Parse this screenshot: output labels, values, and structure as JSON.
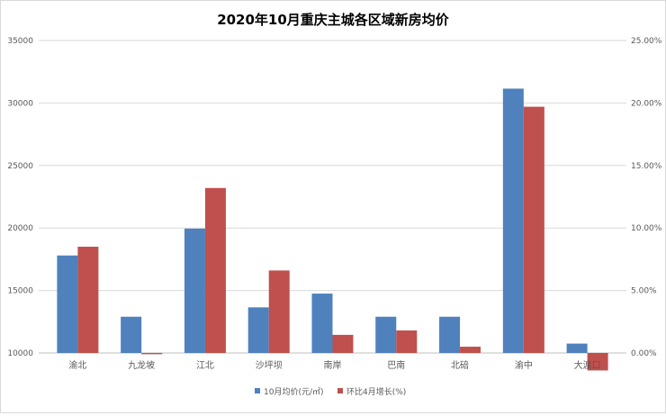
{
  "chart_data": {
    "type": "bar",
    "title": "2020年10月重庆主城各区域新房均价",
    "categories": [
      "渝北",
      "九龙坡",
      "江北",
      "沙坪坝",
      "南岸",
      "巴南",
      "北碚",
      "渝中",
      "大渡口"
    ],
    "series": [
      {
        "name": "10月均价(元/㎡)",
        "axis": "left",
        "color": "#4f81bd",
        "values": [
          17800,
          12900,
          19950,
          13650,
          14750,
          12900,
          12900,
          31150,
          10750
        ]
      },
      {
        "name": "环比4月增长(%)",
        "axis": "right",
        "color": "#c0504d",
        "values": [
          8.5,
          -0.1,
          13.2,
          6.6,
          1.45,
          1.8,
          0.5,
          19.7,
          -1.4
        ]
      }
    ],
    "ylim": [
      10000,
      35000
    ],
    "y2lim": [
      0,
      25
    ],
    "yticks": [
      "10000",
      "15000",
      "20000",
      "25000",
      "30000",
      "35000"
    ],
    "y2ticks": [
      "0.00%",
      "5.00%",
      "10.00%",
      "15.00%",
      "20.00%",
      "25.00%"
    ],
    "grid": true,
    "legend": "bottom"
  }
}
